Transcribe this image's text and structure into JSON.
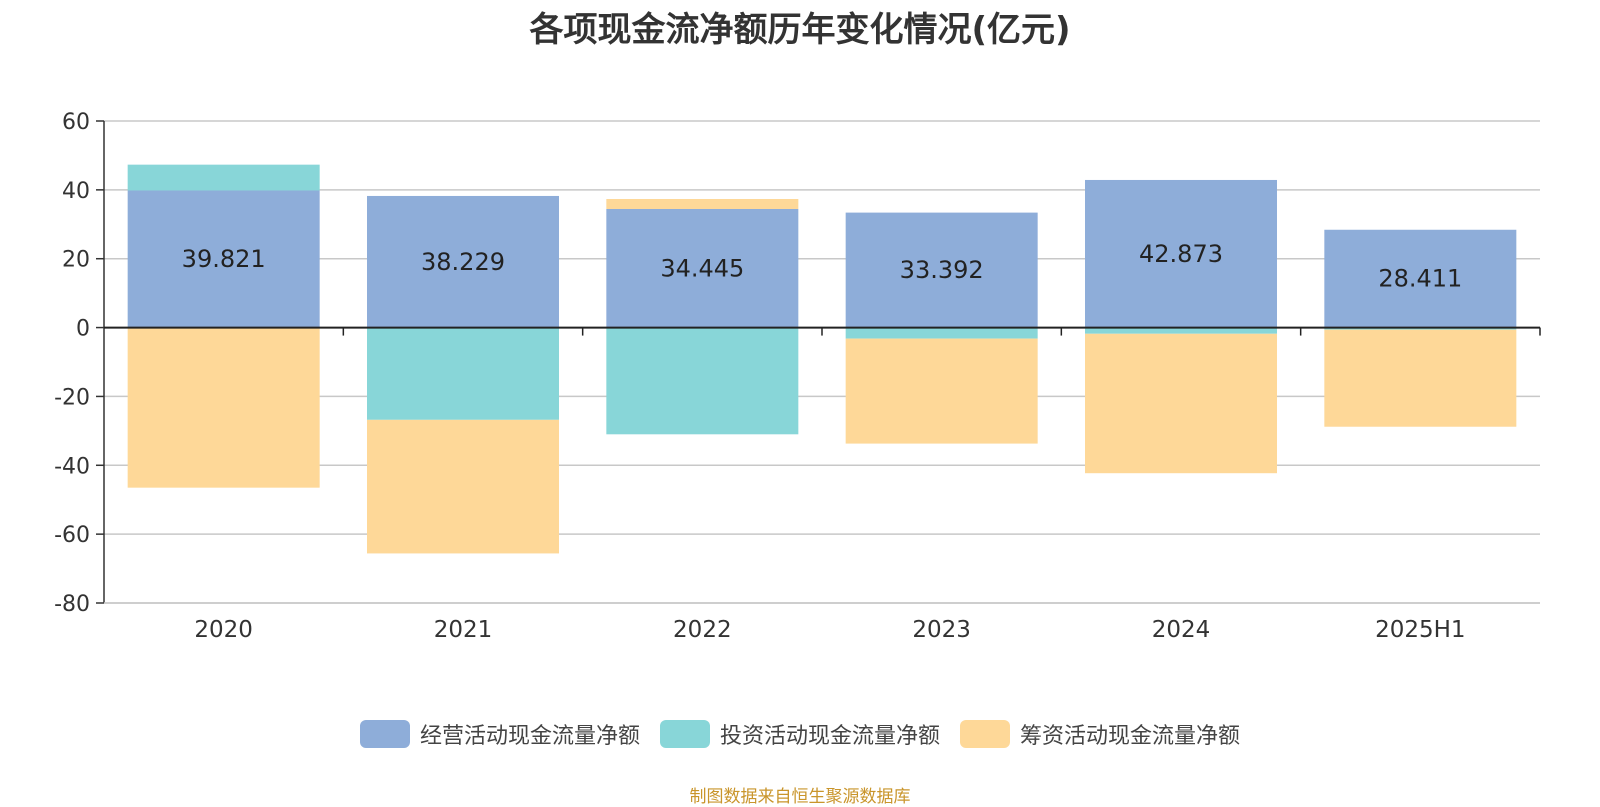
{
  "chart_data": {
    "type": "bar",
    "stacked": true,
    "title": "各项现金流净额历年变化情况(亿元)",
    "categories": [
      "2020",
      "2021",
      "2022",
      "2023",
      "2024",
      "2025H1"
    ],
    "ylim": [
      -80,
      60
    ],
    "yticks": [
      60,
      40,
      20,
      0,
      -20,
      -40,
      -60,
      -80
    ],
    "grid": true,
    "legend_position": "bottom",
    "series": [
      {
        "name": "经营活动现金流量净额",
        "color": "#8eadd9",
        "values": [
          39.821,
          38.229,
          34.445,
          33.392,
          42.873,
          28.411
        ],
        "labels": [
          "39.821",
          "38.229",
          "34.445",
          "33.392",
          "42.873",
          "28.411"
        ]
      },
      {
        "name": "投资活动现金流量净额",
        "color": "#88d6d8",
        "values": [
          7.5,
          -26.8,
          -31.0,
          -3.2,
          -1.8,
          -0.6
        ]
      },
      {
        "name": "筹资活动现金流量净额",
        "color": "#fed898",
        "values": [
          -46.5,
          -38.8,
          2.9,
          -30.5,
          -40.5,
          -28.2
        ]
      }
    ]
  },
  "source_note": "制图数据来自恒生聚源数据库"
}
